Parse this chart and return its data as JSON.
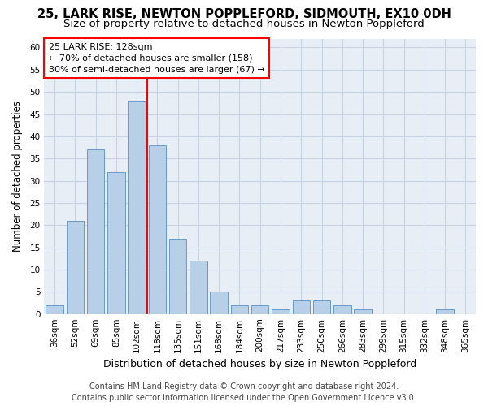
{
  "title": "25, LARK RISE, NEWTON POPPLEFORD, SIDMOUTH, EX10 0DH",
  "subtitle": "Size of property relative to detached houses in Newton Poppleford",
  "xlabel": "Distribution of detached houses by size in Newton Poppleford",
  "ylabel": "Number of detached properties",
  "categories": [
    "36sqm",
    "52sqm",
    "69sqm",
    "85sqm",
    "102sqm",
    "118sqm",
    "135sqm",
    "151sqm",
    "168sqm",
    "184sqm",
    "200sqm",
    "217sqm",
    "233sqm",
    "250sqm",
    "266sqm",
    "283sqm",
    "299sqm",
    "315sqm",
    "332sqm",
    "348sqm",
    "365sqm"
  ],
  "values": [
    2,
    21,
    37,
    32,
    48,
    38,
    17,
    12,
    5,
    2,
    2,
    1,
    3,
    3,
    2,
    1,
    0,
    0,
    0,
    1,
    0
  ],
  "bar_color": "#b8cfe8",
  "bar_edge_color": "#6699cc",
  "grid_color": "#c8d4e4",
  "bg_color": "#e8eef6",
  "annotation_line1": "25 LARK RISE: 128sqm",
  "annotation_line2": "← 70% of detached houses are smaller (158)",
  "annotation_line3": "30% of semi-detached houses are larger (67) →",
  "vline_x_index": 5,
  "vline_color": "red",
  "annotation_box_color": "red",
  "ylim": [
    0,
    62
  ],
  "yticks": [
    0,
    5,
    10,
    15,
    20,
    25,
    30,
    35,
    40,
    45,
    50,
    55,
    60
  ],
  "footer_line1": "Contains HM Land Registry data © Crown copyright and database right 2024.",
  "footer_line2": "Contains public sector information licensed under the Open Government Licence v3.0.",
  "title_fontsize": 10.5,
  "subtitle_fontsize": 9.5,
  "xlabel_fontsize": 9,
  "ylabel_fontsize": 8.5,
  "tick_fontsize": 7.5,
  "footer_fontsize": 7,
  "annotation_fontsize": 8
}
